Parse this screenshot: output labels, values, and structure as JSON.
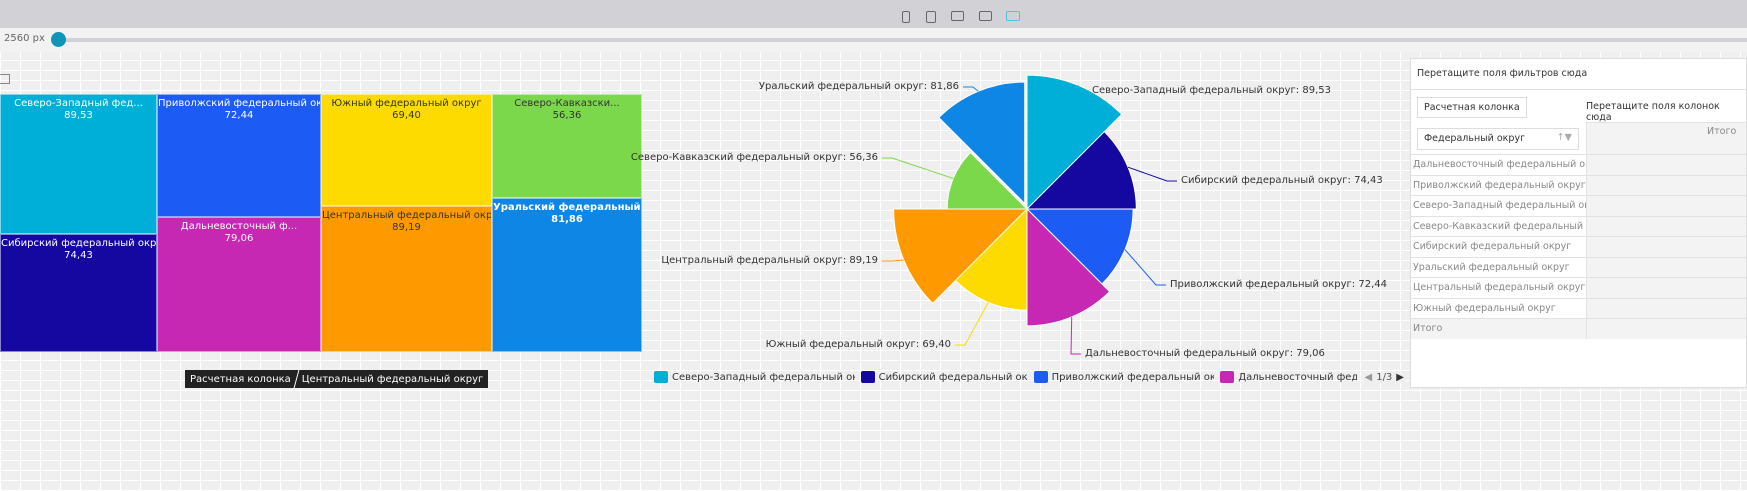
{
  "toolbar": {
    "devices": [
      "phone-icon",
      "tablet-icon",
      "laptop-icon",
      "desktop-icon",
      "wide-screen-icon"
    ],
    "width_label": "2560 px"
  },
  "treemap": [
    {
      "label": "Северо-Западный фед...",
      "value": "89,53",
      "color": "#00afd8"
    },
    {
      "label": "Сибирский федеральный округ",
      "value": "74,43",
      "color": "#1408a0"
    },
    {
      "label": "Приволжский федеральный округ",
      "value": "72,44",
      "color": "#1c5cf4"
    },
    {
      "label": "Дальневосточный ф...",
      "value": "79,06",
      "color": "#c627b3"
    },
    {
      "label": "Южный федеральный округ",
      "value": "69,40",
      "color": "#fddb00"
    },
    {
      "label": "Центральный федеральный округ",
      "value": "89,19",
      "color": "#fe9a00"
    },
    {
      "label": "Северо-Кавказски...",
      "value": "56,36",
      "color": "#7ad84a"
    },
    {
      "label": "Уральский федеральный округ",
      "value": "81,86",
      "color": "#0d86e6"
    }
  ],
  "breadcrumb": [
    "Расчетная колонка",
    "Центральный федеральный округ"
  ],
  "chart_data": {
    "type": "pie",
    "variant": "variable-radius",
    "categories": [
      "Северо-Западный федеральный округ",
      "Сибирский федеральный округ",
      "Приволжский федеральный округ",
      "Дальневосточный федеральный округ",
      "Южный федеральный округ",
      "Центральный федеральный округ",
      "Северо-Кавказский федеральный округ",
      "Уральский федеральный округ"
    ],
    "values": [
      89.53,
      74.43,
      72.44,
      79.06,
      69.4,
      89.19,
      56.36,
      81.86
    ],
    "labels": [
      "Северо-Западный федеральный округ: 89,53",
      "Сибирский федеральный округ: 74,43",
      "Приволжский федеральный округ: 72,44",
      "Дальневосточный федеральный округ: 79,06",
      "Южный федеральный округ: 69,40",
      "Центральный федеральный округ: 89,19",
      "Северо-Кавказский федеральный округ: 56,36",
      "Уральский федеральный округ: 81,86"
    ],
    "colors": [
      "#00afd8",
      "#1408a0",
      "#1c5cf4",
      "#c627b3",
      "#fddb00",
      "#fe9a00",
      "#7ad84a",
      "#0d86e6"
    ],
    "legend": {
      "placement": "bottom",
      "items": [
        "Северо-Западный федеральный округ",
        "Сибирский федеральный округ",
        "Приволжский федеральный округ",
        "Дальневосточный федер"
      ],
      "page": "1/3"
    }
  },
  "pivot": {
    "filter_hint": "Перетащите поля фильтров сюда",
    "data_field": "Расчетная колонка",
    "column_hint": "Перетащите поля колонок сюда",
    "row_field": "Федеральный округ",
    "total_header": "Итого",
    "rows": [
      "Дальневосточный федеральный округ",
      "Приволжский федеральный округ",
      "Северо-Западный федеральный округ",
      "Северо-Кавказский федеральный округ",
      "Сибирский федеральный округ",
      "Уральский федеральный округ",
      "Центральный федеральный округ",
      "Южный федеральный округ"
    ],
    "total_row": "Итого"
  }
}
